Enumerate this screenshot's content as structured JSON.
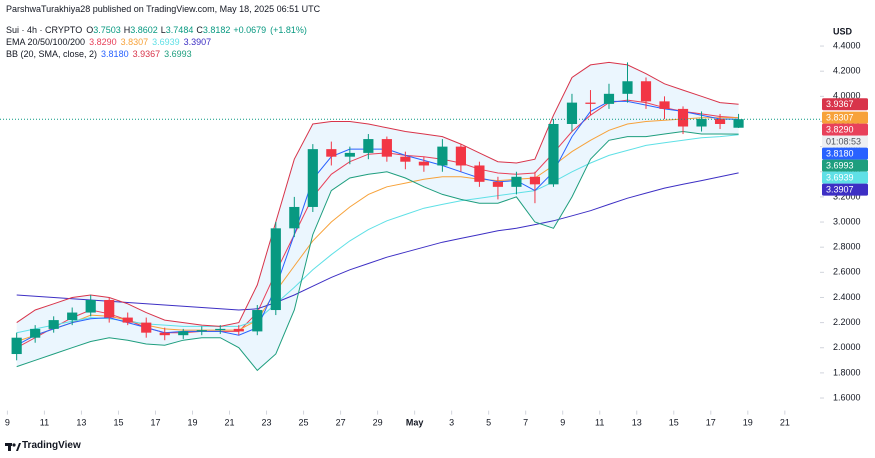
{
  "header": {
    "attribution": "ParshwaTurakhiya28 published on TradingView.com, May 18, 2025 06:51 UTC",
    "countdown": "01:08:53",
    "currency": "USD",
    "brand": "TradingView"
  },
  "chart_data": {
    "type": "candlestick",
    "title": "Sui · 4h · CRYPTO",
    "ohlc_labels": [
      "O",
      "H",
      "L",
      "C"
    ],
    "change": "+0.0679",
    "change_pct": "(+1.81%)",
    "up_color": "#089981",
    "down_color": "#f23645",
    "x": [
      0.5,
      1.5,
      2.5,
      3.5,
      4.5,
      5.5,
      6.5,
      7.5,
      8.5,
      9.5,
      10.5,
      11.5,
      12.5,
      13.5,
      14.5,
      15.5,
      16.5,
      17.5,
      18.5,
      19.5,
      20.5,
      21.5,
      22.5,
      23.5,
      24.5,
      25.5,
      26.5,
      27.5,
      28.5,
      29.5,
      30.5,
      31.5,
      32.5,
      33.5,
      34.5,
      35.5,
      36.5,
      37.5,
      38.5,
      39.5
    ],
    "open": [
      1.95,
      2.08,
      2.15,
      2.22,
      2.28,
      2.38,
      2.24,
      2.2,
      2.12,
      2.1,
      2.13,
      2.14,
      2.15,
      2.13,
      2.3,
      2.95,
      3.12,
      3.58,
      3.52,
      3.55,
      3.66,
      3.52,
      3.48,
      3.45,
      3.6,
      3.45,
      3.32,
      3.28,
      3.36,
      3.3,
      3.78,
      3.95,
      3.94,
      4.02,
      4.12,
      3.96,
      3.9,
      3.76,
      3.82,
      3.7503
    ],
    "high": [
      2.12,
      2.18,
      2.25,
      2.32,
      2.42,
      2.4,
      2.28,
      2.24,
      2.16,
      2.15,
      2.17,
      2.18,
      2.18,
      2.34,
      3.0,
      3.2,
      3.62,
      3.64,
      3.6,
      3.7,
      3.68,
      3.56,
      3.52,
      3.66,
      3.62,
      3.48,
      3.36,
      3.4,
      3.4,
      3.82,
      4.02,
      4.05,
      4.1,
      4.27,
      4.15,
      4.0,
      3.92,
      3.88,
      3.86,
      3.8602
    ],
    "low": [
      1.9,
      2.04,
      2.12,
      2.18,
      2.25,
      2.2,
      2.18,
      2.08,
      2.06,
      2.07,
      2.1,
      2.11,
      2.1,
      2.1,
      2.26,
      2.88,
      3.08,
      3.45,
      3.46,
      3.5,
      3.48,
      3.42,
      3.4,
      3.4,
      3.4,
      3.28,
      3.18,
      3.22,
      3.15,
      3.28,
      3.72,
      3.85,
      3.9,
      3.95,
      3.9,
      3.82,
      3.7,
      3.72,
      3.74,
      3.7484
    ],
    "close": [
      2.08,
      2.15,
      2.22,
      2.28,
      2.38,
      2.24,
      2.2,
      2.12,
      2.1,
      2.13,
      2.14,
      2.15,
      2.13,
      2.3,
      2.95,
      3.12,
      3.58,
      3.52,
      3.55,
      3.66,
      3.52,
      3.48,
      3.45,
      3.6,
      3.45,
      3.32,
      3.28,
      3.36,
      3.3,
      3.78,
      3.95,
      3.94,
      4.02,
      4.12,
      3.96,
      3.9,
      3.76,
      3.82,
      3.78,
      3.8182
    ],
    "overlays": [
      {
        "name": "EMA 20/50/100/200",
        "lines": [
          {
            "color": "#e8415a",
            "label": "3.8290",
            "values": [
              2.0,
              2.08,
              2.16,
              2.24,
              2.3,
              2.27,
              2.22,
              2.16,
              2.12,
              2.12,
              2.13,
              2.13,
              2.13,
              2.28,
              2.6,
              2.9,
              3.2,
              3.38,
              3.48,
              3.54,
              3.55,
              3.53,
              3.52,
              3.5,
              3.47,
              3.42,
              3.39,
              3.38,
              3.39,
              3.55,
              3.72,
              3.85,
              3.95,
              3.97,
              3.95,
              3.91,
              3.88,
              3.86,
              3.84,
              3.829
            ]
          },
          {
            "color": "#f7a23a",
            "label": "3.8307",
            "values": [
              2.05,
              2.1,
              2.15,
              2.2,
              2.26,
              2.25,
              2.22,
              2.18,
              2.15,
              2.14,
              2.14,
              2.14,
              2.14,
              2.22,
              2.45,
              2.65,
              2.85,
              3.0,
              3.12,
              3.22,
              3.28,
              3.31,
              3.34,
              3.36,
              3.36,
              3.34,
              3.33,
              3.34,
              3.35,
              3.45,
              3.56,
              3.65,
              3.73,
              3.78,
              3.8,
              3.81,
              3.82,
              3.83,
              3.83,
              3.8307
            ]
          },
          {
            "color": "#5fe0e6",
            "label": "3.6939",
            "values": [
              2.12,
              2.15,
              2.18,
              2.21,
              2.24,
              2.23,
              2.21,
              2.19,
              2.18,
              2.17,
              2.17,
              2.17,
              2.17,
              2.22,
              2.35,
              2.48,
              2.62,
              2.74,
              2.85,
              2.94,
              3.01,
              3.06,
              3.11,
              3.14,
              3.17,
              3.19,
              3.21,
              3.23,
              3.25,
              3.32,
              3.4,
              3.47,
              3.53,
              3.57,
              3.61,
              3.63,
              3.65,
              3.67,
              3.68,
              3.6939
            ]
          },
          {
            "color": "#3d2fc4",
            "label": "3.3907",
            "values": [
              2.42,
              2.41,
              2.4,
              2.39,
              2.38,
              2.37,
              2.36,
              2.35,
              2.34,
              2.33,
              2.32,
              2.31,
              2.3,
              2.31,
              2.36,
              2.42,
              2.49,
              2.56,
              2.62,
              2.67,
              2.72,
              2.76,
              2.8,
              2.84,
              2.87,
              2.9,
              2.93,
              2.95,
              2.98,
              3.01,
              3.05,
              3.09,
              3.14,
              3.19,
              3.23,
              3.27,
              3.3,
              3.33,
              3.36,
              3.3907
            ]
          }
        ]
      },
      {
        "name": "BB (20, SMA, close, 2)",
        "fill": "#e3f2fd",
        "lines": [
          {
            "color": "#2962ff",
            "label": "3.8180",
            "values": [
              2.02,
              2.1,
              2.15,
              2.2,
              2.23,
              2.24,
              2.2,
              2.16,
              2.12,
              2.13,
              2.13,
              2.13,
              2.1,
              2.16,
              2.48,
              2.9,
              3.34,
              3.52,
              3.58,
              3.58,
              3.58,
              3.53,
              3.49,
              3.45,
              3.4,
              3.35,
              3.32,
              3.33,
              3.25,
              3.4,
              3.68,
              3.88,
              3.96,
              3.96,
              3.93,
              3.9,
              3.88,
              3.85,
              3.82,
              3.818
            ]
          },
          {
            "color": "#d8344a",
            "label": "3.9367",
            "values": [
              2.2,
              2.3,
              2.35,
              2.4,
              2.42,
              2.4,
              2.35,
              2.28,
              2.22,
              2.2,
              2.18,
              2.17,
              2.2,
              2.5,
              3.0,
              3.5,
              3.78,
              3.8,
              3.8,
              3.78,
              3.75,
              3.72,
              3.7,
              3.68,
              3.62,
              3.55,
              3.48,
              3.47,
              3.5,
              3.85,
              4.15,
              4.25,
              4.27,
              4.25,
              4.18,
              4.1,
              4.05,
              4.0,
              3.95,
              3.9367
            ]
          },
          {
            "color": "#1e9e7e",
            "label": "3.6993",
            "values": [
              1.85,
              1.9,
              1.95,
              2.0,
              2.05,
              2.08,
              2.06,
              2.03,
              2.02,
              2.06,
              2.08,
              2.08,
              2.0,
              1.82,
              1.95,
              2.3,
              2.9,
              3.25,
              3.35,
              3.38,
              3.4,
              3.35,
              3.28,
              3.22,
              3.18,
              3.15,
              3.15,
              3.2,
              3.0,
              2.95,
              3.2,
              3.5,
              3.65,
              3.68,
              3.68,
              3.7,
              3.72,
              3.7,
              3.7,
              3.6993
            ]
          }
        ]
      }
    ],
    "xlim": [
      -0.4,
      43.9
    ],
    "xticks": [
      {
        "value": 0,
        "label": "9"
      },
      {
        "value": 2,
        "label": "11"
      },
      {
        "value": 4,
        "label": "13"
      },
      {
        "value": 6,
        "label": "15"
      },
      {
        "value": 8,
        "label": "17"
      },
      {
        "value": 10,
        "label": "19"
      },
      {
        "value": 12,
        "label": "21"
      },
      {
        "value": 14,
        "label": "23"
      },
      {
        "value": 16,
        "label": "25"
      },
      {
        "value": 18,
        "label": "27"
      },
      {
        "value": 20,
        "label": "29"
      },
      {
        "value": 22,
        "label": "May"
      },
      {
        "value": 24,
        "label": "3"
      },
      {
        "value": 26,
        "label": "5"
      },
      {
        "value": 28,
        "label": "7"
      },
      {
        "value": 30,
        "label": "9"
      },
      {
        "value": 32,
        "label": "11"
      },
      {
        "value": 34,
        "label": "13"
      },
      {
        "value": 36,
        "label": "15"
      },
      {
        "value": 38,
        "label": "17"
      },
      {
        "value": 40,
        "label": "19"
      },
      {
        "value": 42,
        "label": "21"
      }
    ],
    "ylim": [
      1.5,
      4.62
    ],
    "yticks": [
      {
        "value": 1.6,
        "label": "1.6000"
      },
      {
        "value": 1.8,
        "label": "1.8000"
      },
      {
        "value": 2.0,
        "label": "2.0000"
      },
      {
        "value": 2.2,
        "label": "2.2000"
      },
      {
        "value": 2.4,
        "label": "2.4000"
      },
      {
        "value": 2.6,
        "label": "2.6000"
      },
      {
        "value": 2.8,
        "label": "2.8000"
      },
      {
        "value": 3.0,
        "label": "3.0000"
      },
      {
        "value": 3.2,
        "label": "3.2000"
      },
      {
        "value": 3.4,
        "label": "3.4000"
      },
      {
        "value": 3.6,
        "label": "3.6000"
      },
      {
        "value": 3.8,
        "label": "3.8000"
      },
      {
        "value": 4.0,
        "label": "4.0000"
      },
      {
        "value": 4.2,
        "label": "4.2000"
      },
      {
        "value": 4.4,
        "label": "4.4000"
      }
    ],
    "price_line_color": "#089981"
  }
}
